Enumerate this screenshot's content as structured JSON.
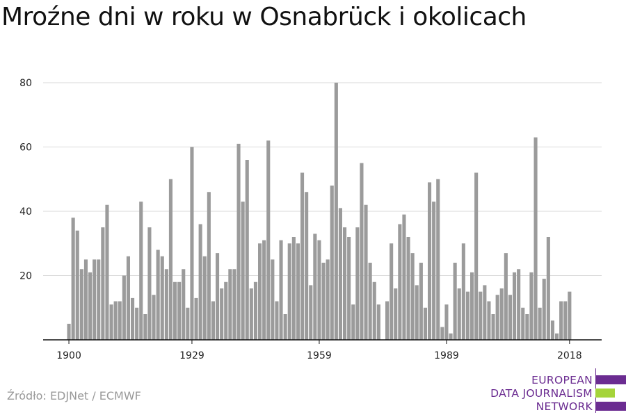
{
  "title": "Mroźne dni w roku w Osnabrück i okolicach",
  "source": "Źródło: EDJNet / ECMWF",
  "logo": {
    "line1": "EUROPEAN",
    "line2": "DATA JOURNALISM",
    "line3": "NETWORK"
  },
  "colors": {
    "bar": "#9b9b9b",
    "grid": "#d9d9d9",
    "axis": "#111111",
    "logo_purple": "#6b2c91",
    "logo_green": "#a5d43a"
  },
  "chart_data": {
    "type": "bar",
    "title": "Mroźne dni w roku w Osnabrück i okolicach",
    "xlabel": "",
    "ylabel": "",
    "ylim": [
      0,
      80
    ],
    "yticks": [
      20,
      40,
      60,
      80
    ],
    "xticks": [
      1900,
      1929,
      1959,
      1989,
      2018
    ],
    "grid": true,
    "x": [
      1900,
      1901,
      1902,
      1903,
      1904,
      1905,
      1906,
      1907,
      1908,
      1909,
      1910,
      1911,
      1912,
      1913,
      1914,
      1915,
      1916,
      1917,
      1918,
      1919,
      1920,
      1921,
      1922,
      1923,
      1924,
      1925,
      1926,
      1927,
      1928,
      1929,
      1930,
      1931,
      1932,
      1933,
      1934,
      1935,
      1936,
      1937,
      1938,
      1939,
      1940,
      1941,
      1942,
      1943,
      1944,
      1945,
      1946,
      1947,
      1948,
      1949,
      1950,
      1951,
      1952,
      1953,
      1954,
      1955,
      1956,
      1957,
      1958,
      1959,
      1960,
      1961,
      1962,
      1963,
      1964,
      1965,
      1966,
      1967,
      1968,
      1969,
      1970,
      1971,
      1972,
      1973,
      1974,
      1975,
      1976,
      1977,
      1978,
      1979,
      1980,
      1981,
      1982,
      1983,
      1984,
      1985,
      1986,
      1987,
      1988,
      1989,
      1990,
      1991,
      1992,
      1993,
      1994,
      1995,
      1996,
      1997,
      1998,
      1999,
      2000,
      2001,
      2002,
      2003,
      2004,
      2005,
      2006,
      2007,
      2008,
      2009,
      2010,
      2011,
      2012,
      2013,
      2014,
      2015,
      2016,
      2017,
      2018
    ],
    "values": [
      5,
      38,
      34,
      22,
      25,
      21,
      25,
      25,
      35,
      42,
      11,
      12,
      12,
      20,
      26,
      13,
      10,
      43,
      8,
      35,
      14,
      28,
      26,
      22,
      50,
      18,
      18,
      22,
      10,
      60,
      13,
      36,
      26,
      46,
      12,
      27,
      16,
      18,
      22,
      22,
      61,
      43,
      56,
      16,
      18,
      30,
      31,
      62,
      25,
      12,
      31,
      8,
      30,
      32,
      30,
      52,
      46,
      17,
      33,
      31,
      24,
      25,
      48,
      80,
      41,
      35,
      32,
      11,
      35,
      55,
      42,
      24,
      18,
      11,
      0,
      12,
      30,
      16,
      36,
      39,
      32,
      27,
      17,
      24,
      10,
      49,
      43,
      50,
      4,
      11,
      2,
      24,
      16,
      30,
      15,
      21,
      52,
      15,
      17,
      12,
      8,
      14,
      16,
      27,
      14,
      21,
      22,
      10,
      8,
      21,
      63,
      10,
      19,
      32,
      6,
      2,
      12,
      12,
      15
    ]
  }
}
